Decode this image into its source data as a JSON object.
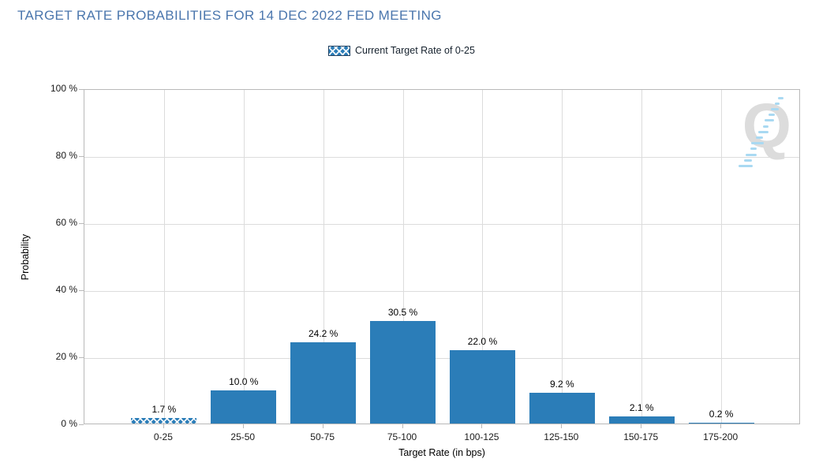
{
  "colors": {
    "bar": "#2b7db8",
    "title": "#4a76ad",
    "grid": "#dcdcdc",
    "axis": "#b9b9b9",
    "legend_border": "#1f3f5f",
    "watermark_letter": "#dcdcdc",
    "watermark_dash": "#a9d9f2"
  },
  "watermark": {
    "letter": "Q"
  },
  "chart_data": {
    "type": "bar",
    "title": "TARGET RATE PROBABILITIES FOR 14 DEC 2022 FED MEETING",
    "categories": [
      "0-25",
      "25-50",
      "50-75",
      "75-100",
      "100-125",
      "125-150",
      "150-175",
      "175-200"
    ],
    "values": [
      1.7,
      10.0,
      24.2,
      30.5,
      22.0,
      9.2,
      2.1,
      0.2
    ],
    "bar_labels": [
      "1.7 %",
      "10.0 %",
      "24.2 %",
      "30.5 %",
      "22.0 %",
      "9.2 %",
      "2.1 %",
      "0.2 %"
    ],
    "highlighted_category": "0-25",
    "highlight_style": "crosshatch",
    "xlabel": "Target Rate (in bps)",
    "ylabel": "Probability",
    "ylim": [
      0,
      100
    ],
    "yticks": [
      0,
      20,
      40,
      60,
      80,
      100
    ],
    "ytick_labels": [
      "0 %",
      "20 %",
      "40 %",
      "60 %",
      "80 %",
      "100 %"
    ],
    "grid": true,
    "legend": {
      "position": "top-center",
      "entries": [
        "Current Target Rate of 0-25"
      ]
    }
  }
}
